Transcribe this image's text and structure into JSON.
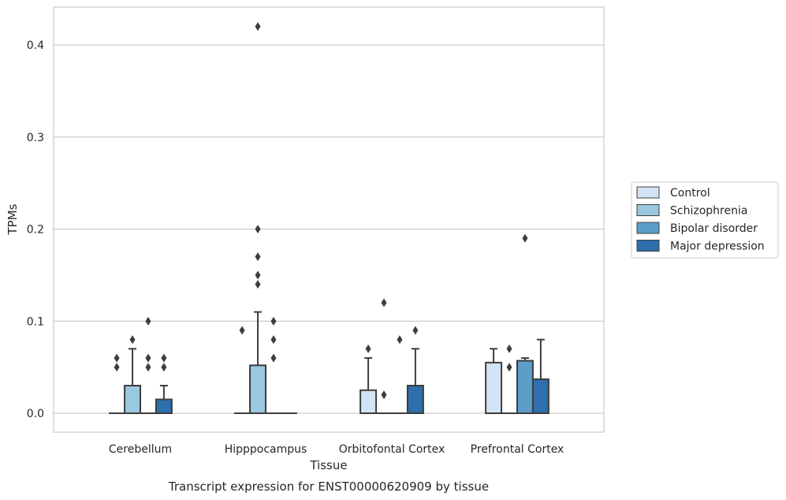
{
  "chart_data": {
    "type": "box",
    "title": "Transcript expression for ENST00000620909 by tissue",
    "xlabel": "Tissue",
    "ylabel": "TPMs",
    "ylim": [
      -0.02,
      0.44
    ],
    "yticks": [
      0.0,
      0.1,
      0.2,
      0.3,
      0.4
    ],
    "ytick_labels": [
      "0.0",
      "0.1",
      "0.2",
      "0.3",
      "0.4"
    ],
    "grid": "horizontal",
    "legend_position": "right",
    "categories": [
      "Cerebellum",
      "Hipppocampus",
      "Orbitofontal Cortex",
      "Prefrontal Cortex"
    ],
    "series": [
      {
        "name": "Control",
        "color": "#d2e3f3",
        "boxes": [
          {
            "q1": 0,
            "median": 0,
            "q3": 0,
            "whisker_low": 0,
            "whisker_high": 0,
            "outliers": [
              0.05,
              0.06
            ]
          },
          {
            "q1": 0,
            "median": 0,
            "q3": 0,
            "whisker_low": 0,
            "whisker_high": 0,
            "outliers": [
              0.09
            ]
          },
          {
            "q1": 0,
            "median": 0,
            "q3": 0.025,
            "whisker_low": 0,
            "whisker_high": 0.06,
            "outliers": [
              0.07
            ]
          },
          {
            "q1": 0,
            "median": 0,
            "q3": 0.055,
            "whisker_low": 0,
            "whisker_high": 0.07,
            "outliers": []
          }
        ]
      },
      {
        "name": "Schizophrenia",
        "color": "#9ac8e0",
        "boxes": [
          {
            "q1": 0,
            "median": 0,
            "q3": 0.03,
            "whisker_low": 0,
            "whisker_high": 0.07,
            "outliers": [
              0.08
            ]
          },
          {
            "q1": 0,
            "median": 0,
            "q3": 0.052,
            "whisker_low": 0,
            "whisker_high": 0.11,
            "outliers": [
              0.14,
              0.15,
              0.17,
              0.2,
              0.42
            ]
          },
          {
            "q1": 0,
            "median": 0,
            "q3": 0,
            "whisker_low": 0,
            "whisker_high": 0,
            "outliers": [
              0.02,
              0.12
            ]
          },
          {
            "q1": 0,
            "median": 0,
            "q3": 0,
            "whisker_low": 0,
            "whisker_high": 0,
            "outliers": [
              0.05,
              0.07
            ]
          }
        ]
      },
      {
        "name": "Bipolar disorder",
        "color": "#5a9ec9",
        "boxes": [
          {
            "q1": 0,
            "median": 0,
            "q3": 0,
            "whisker_low": 0,
            "whisker_high": 0,
            "outliers": [
              0.05,
              0.06,
              0.1
            ]
          },
          {
            "q1": 0,
            "median": 0,
            "q3": 0,
            "whisker_low": 0,
            "whisker_high": 0,
            "outliers": [
              0.06,
              0.08,
              0.1
            ]
          },
          {
            "q1": 0,
            "median": 0,
            "q3": 0,
            "whisker_low": 0,
            "whisker_high": 0,
            "outliers": [
              0.08
            ]
          },
          {
            "q1": 0,
            "median": 0,
            "q3": 0.057,
            "whisker_low": 0,
            "whisker_high": 0.06,
            "outliers": [
              0.19
            ]
          }
        ]
      },
      {
        "name": "Major depression",
        "color": "#2e6fad",
        "boxes": [
          {
            "q1": 0,
            "median": 0,
            "q3": 0.015,
            "whisker_low": 0,
            "whisker_high": 0.03,
            "outliers": [
              0.05,
              0.06
            ]
          },
          {
            "q1": 0,
            "median": 0,
            "q3": 0,
            "whisker_low": 0,
            "whisker_high": 0,
            "outliers": []
          },
          {
            "q1": 0,
            "median": 0,
            "q3": 0.03,
            "whisker_low": 0,
            "whisker_high": 0.07,
            "outliers": [
              0.09
            ]
          },
          {
            "q1": 0,
            "median": 0,
            "q3": 0.037,
            "whisker_low": 0,
            "whisker_high": 0.08,
            "outliers": []
          }
        ]
      }
    ]
  }
}
